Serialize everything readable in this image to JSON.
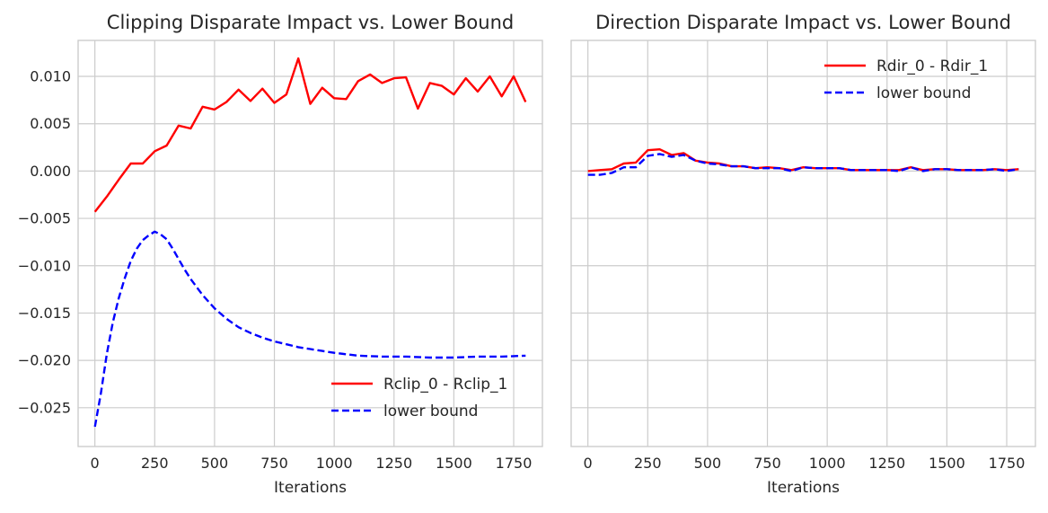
{
  "colors": {
    "grid": "#cccccc",
    "spine": "#cccccc",
    "series_solid": "#ff0000",
    "series_dashed": "#0000ff",
    "text": "#262626"
  },
  "chart_data": [
    {
      "type": "line",
      "title": "Clipping Disparate Impact vs. Lower Bound",
      "xlabel": "Iterations",
      "ylabel": "",
      "xlim": [
        -70,
        1870
      ],
      "ylim": [
        -0.0291,
        0.0138
      ],
      "xticks": [
        0,
        250,
        500,
        750,
        1000,
        1250,
        1500,
        1750
      ],
      "xtick_labels": [
        "0",
        "250",
        "500",
        "750",
        "1000",
        "1250",
        "1500",
        "1750"
      ],
      "yticks": [
        0.01,
        0.005,
        0.0,
        -0.005,
        -0.01,
        -0.015,
        -0.02,
        -0.025
      ],
      "ytick_labels": [
        "0.010",
        "0.005",
        "0.000",
        "−0.005",
        "−0.010",
        "−0.015",
        "−0.020",
        "−0.025"
      ],
      "legend_position": "lower-right",
      "series": [
        {
          "name": "Rclip_0 - Rclip_1",
          "style": "solid",
          "x": [
            0,
            50,
            100,
            150,
            200,
            250,
            300,
            350,
            400,
            450,
            500,
            550,
            600,
            650,
            700,
            750,
            800,
            850,
            900,
            950,
            1000,
            1050,
            1100,
            1150,
            1200,
            1250,
            1300,
            1350,
            1400,
            1450,
            1500,
            1550,
            1600,
            1650,
            1700,
            1750,
            1800
          ],
          "y": [
            -0.0043,
            -0.0027,
            -0.0009,
            0.0008,
            0.0008,
            0.0021,
            0.0027,
            0.0048,
            0.0045,
            0.0068,
            0.0065,
            0.0073,
            0.0086,
            0.0074,
            0.0087,
            0.0072,
            0.0081,
            0.0119,
            0.0071,
            0.0088,
            0.0077,
            0.0076,
            0.0095,
            0.0102,
            0.0093,
            0.0098,
            0.0099,
            0.0066,
            0.0093,
            0.009,
            0.0081,
            0.0098,
            0.0084,
            0.01,
            0.0079,
            0.01,
            0.0073
          ]
        },
        {
          "name": "lower bound",
          "style": "dashed",
          "x": [
            0,
            25,
            50,
            75,
            100,
            125,
            150,
            175,
            200,
            225,
            250,
            275,
            300,
            325,
            350,
            375,
            400,
            450,
            500,
            550,
            600,
            650,
            700,
            750,
            800,
            850,
            900,
            950,
            1000,
            1100,
            1200,
            1300,
            1400,
            1500,
            1600,
            1700,
            1800
          ],
          "y": [
            -0.027,
            -0.0235,
            -0.0193,
            -0.016,
            -0.0134,
            -0.0113,
            -0.0095,
            -0.0082,
            -0.0073,
            -0.0068,
            -0.0064,
            -0.0067,
            -0.0072,
            -0.0082,
            -0.0093,
            -0.0104,
            -0.0114,
            -0.0131,
            -0.0145,
            -0.0156,
            -0.0165,
            -0.0171,
            -0.0176,
            -0.018,
            -0.0183,
            -0.0186,
            -0.0188,
            -0.019,
            -0.0192,
            -0.0195,
            -0.0196,
            -0.0196,
            -0.0197,
            -0.0197,
            -0.0196,
            -0.0196,
            -0.0195
          ]
        }
      ]
    },
    {
      "type": "line",
      "title": "Direction Disparate Impact vs. Lower Bound",
      "xlabel": "Iterations",
      "ylabel": "",
      "xlim": [
        -70,
        1870
      ],
      "ylim": [
        -0.0291,
        0.0138
      ],
      "xticks": [
        0,
        250,
        500,
        750,
        1000,
        1250,
        1500,
        1750
      ],
      "xtick_labels": [
        "0",
        "250",
        "500",
        "750",
        "1000",
        "1250",
        "1500",
        "1750"
      ],
      "yticks": [
        0.01,
        0.005,
        0.0,
        -0.005,
        -0.01,
        -0.015,
        -0.02,
        -0.025
      ],
      "ytick_labels": [],
      "legend_position": "upper-right",
      "series": [
        {
          "name": "Rdir_0 - Rdir_1",
          "style": "solid",
          "x": [
            0,
            50,
            100,
            150,
            200,
            250,
            300,
            350,
            400,
            450,
            500,
            550,
            600,
            650,
            700,
            750,
            800,
            850,
            900,
            950,
            1000,
            1050,
            1100,
            1150,
            1200,
            1250,
            1300,
            1350,
            1400,
            1450,
            1500,
            1550,
            1600,
            1650,
            1700,
            1750,
            1800
          ],
          "y": [
            0.0,
            0.0001,
            0.0002,
            0.0008,
            0.0009,
            0.0022,
            0.0023,
            0.0017,
            0.0019,
            0.0011,
            0.0009,
            0.0008,
            0.0005,
            0.0005,
            0.0003,
            0.0004,
            0.0003,
            0.0001,
            0.0004,
            0.0003,
            0.0003,
            0.0003,
            0.0001,
            0.0001,
            0.0001,
            0.0001,
            0.0001,
            0.0004,
            0.0001,
            0.0002,
            0.0002,
            0.0001,
            0.0001,
            0.0001,
            0.0002,
            0.0001,
            0.0002
          ]
        },
        {
          "name": "lower bound",
          "style": "dashed",
          "x": [
            0,
            50,
            100,
            150,
            200,
            250,
            300,
            350,
            400,
            450,
            500,
            550,
            600,
            650,
            700,
            750,
            800,
            850,
            900,
            950,
            1000,
            1050,
            1100,
            1150,
            1200,
            1250,
            1300,
            1350,
            1400,
            1450,
            1500,
            1550,
            1600,
            1650,
            1700,
            1750,
            1800
          ],
          "y": [
            -0.0004,
            -0.0004,
            -0.0002,
            0.0004,
            0.0004,
            0.0016,
            0.0018,
            0.0015,
            0.0017,
            0.0011,
            0.0008,
            0.0007,
            0.0005,
            0.0005,
            0.0003,
            0.0003,
            0.0003,
            0.0,
            0.0004,
            0.0003,
            0.0003,
            0.0003,
            0.0001,
            0.0001,
            0.0001,
            0.0001,
            0.0,
            0.0004,
            0.0,
            0.0002,
            0.0002,
            0.0001,
            0.0001,
            0.0001,
            0.0002,
            0.0,
            0.0002
          ]
        }
      ]
    }
  ]
}
